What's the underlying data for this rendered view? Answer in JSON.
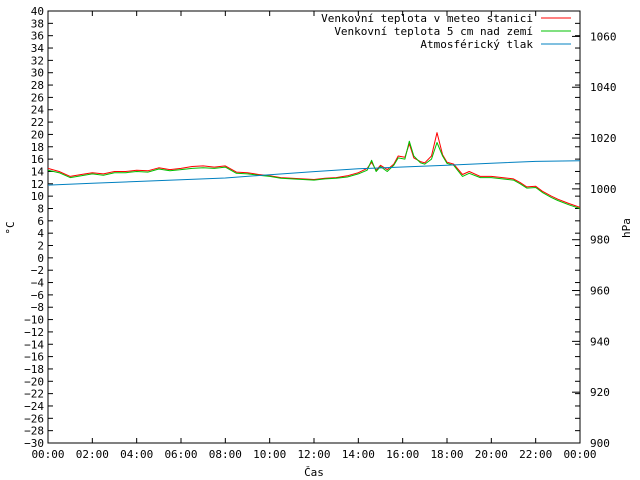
{
  "chart_data": {
    "type": "line",
    "xlabel": "Čas",
    "ylabel": "°C",
    "y2label": "hPa",
    "x_ticks": [
      "00:00",
      "02:00",
      "04:00",
      "06:00",
      "08:00",
      "10:00",
      "12:00",
      "14:00",
      "16:00",
      "18:00",
      "20:00",
      "22:00",
      "00:00"
    ],
    "x_range_hours": [
      0,
      24
    ],
    "ylim": [
      -30,
      40
    ],
    "y_step": 2,
    "y2lim": [
      900,
      1070
    ],
    "y2_ticks": [
      900,
      920,
      940,
      960,
      980,
      1000,
      1020,
      1040,
      1060
    ],
    "grid": false,
    "legend_position": "top-right",
    "series": [
      {
        "name": "Venkovní teplota v meteo stanici",
        "color": "#ff0000",
        "axis": "left",
        "points": [
          [
            0,
            14.5
          ],
          [
            0.5,
            14.0
          ],
          [
            1,
            13.2
          ],
          [
            1.5,
            13.5
          ],
          [
            2,
            13.8
          ],
          [
            2.5,
            13.6
          ],
          [
            3,
            14.0
          ],
          [
            3.5,
            14.0
          ],
          [
            4,
            14.2
          ],
          [
            4.5,
            14.1
          ],
          [
            5,
            14.6
          ],
          [
            5.5,
            14.3
          ],
          [
            6,
            14.5
          ],
          [
            6.5,
            14.8
          ],
          [
            7,
            14.9
          ],
          [
            7.5,
            14.7
          ],
          [
            8,
            14.9
          ],
          [
            8.5,
            13.9
          ],
          [
            9,
            13.8
          ],
          [
            9.5,
            13.5
          ],
          [
            10,
            13.3
          ],
          [
            10.5,
            13.0
          ],
          [
            11,
            12.9
          ],
          [
            11.5,
            12.8
          ],
          [
            12,
            12.7
          ],
          [
            12.5,
            12.9
          ],
          [
            13,
            13.0
          ],
          [
            13.5,
            13.3
          ],
          [
            14,
            13.8
          ],
          [
            14.4,
            14.5
          ],
          [
            14.6,
            15.5
          ],
          [
            14.8,
            14.2
          ],
          [
            15,
            15.0
          ],
          [
            15.3,
            14.3
          ],
          [
            15.6,
            15.2
          ],
          [
            15.8,
            16.5
          ],
          [
            16.1,
            16.3
          ],
          [
            16.3,
            18.5
          ],
          [
            16.5,
            16.2
          ],
          [
            16.8,
            15.6
          ],
          [
            17,
            15.4
          ],
          [
            17.3,
            16.5
          ],
          [
            17.55,
            20.3
          ],
          [
            17.8,
            16.7
          ],
          [
            18,
            15.5
          ],
          [
            18.3,
            15.2
          ],
          [
            18.7,
            13.5
          ],
          [
            19,
            14.0
          ],
          [
            19.5,
            13.2
          ],
          [
            20,
            13.2
          ],
          [
            20.5,
            13.0
          ],
          [
            21,
            12.8
          ],
          [
            21.3,
            12.2
          ],
          [
            21.6,
            11.5
          ],
          [
            22,
            11.6
          ],
          [
            22.3,
            10.8
          ],
          [
            22.7,
            10.0
          ],
          [
            23,
            9.5
          ],
          [
            23.5,
            8.8
          ],
          [
            24,
            8.2
          ]
        ]
      },
      {
        "name": "Venkovní teplota 5 cm nad zemí",
        "color": "#00c000",
        "axis": "left",
        "points": [
          [
            0,
            14.2
          ],
          [
            0.5,
            13.8
          ],
          [
            1,
            13.0
          ],
          [
            1.5,
            13.3
          ],
          [
            2,
            13.6
          ],
          [
            2.5,
            13.4
          ],
          [
            3,
            13.8
          ],
          [
            3.5,
            13.8
          ],
          [
            4,
            14.0
          ],
          [
            4.5,
            13.9
          ],
          [
            5,
            14.4
          ],
          [
            5.5,
            14.1
          ],
          [
            6,
            14.3
          ],
          [
            6.5,
            14.5
          ],
          [
            7,
            14.6
          ],
          [
            7.5,
            14.5
          ],
          [
            8,
            14.7
          ],
          [
            8.5,
            13.7
          ],
          [
            9,
            13.6
          ],
          [
            9.5,
            13.4
          ],
          [
            10,
            13.2
          ],
          [
            10.5,
            12.9
          ],
          [
            11,
            12.8
          ],
          [
            11.5,
            12.7
          ],
          [
            12,
            12.6
          ],
          [
            12.5,
            12.8
          ],
          [
            13,
            12.9
          ],
          [
            13.5,
            13.1
          ],
          [
            14,
            13.6
          ],
          [
            14.4,
            14.2
          ],
          [
            14.6,
            15.8
          ],
          [
            14.8,
            14.0
          ],
          [
            15,
            14.8
          ],
          [
            15.3,
            14.0
          ],
          [
            15.6,
            15.0
          ],
          [
            15.8,
            16.2
          ],
          [
            16.1,
            16.0
          ],
          [
            16.3,
            18.9
          ],
          [
            16.5,
            16.5
          ],
          [
            16.8,
            15.4
          ],
          [
            17,
            15.2
          ],
          [
            17.3,
            16.0
          ],
          [
            17.55,
            18.7
          ],
          [
            17.8,
            16.5
          ],
          [
            18,
            15.3
          ],
          [
            18.3,
            15.0
          ],
          [
            18.7,
            13.2
          ],
          [
            19,
            13.7
          ],
          [
            19.5,
            13.0
          ],
          [
            20,
            13.0
          ],
          [
            20.5,
            12.8
          ],
          [
            21,
            12.6
          ],
          [
            21.3,
            12.0
          ],
          [
            21.6,
            11.3
          ],
          [
            22,
            11.4
          ],
          [
            22.3,
            10.6
          ],
          [
            22.7,
            9.8
          ],
          [
            23,
            9.3
          ],
          [
            23.5,
            8.6
          ],
          [
            24,
            8.0
          ]
        ]
      },
      {
        "name": "Atmosférický tlak",
        "color": "#0080c0",
        "axis": "right",
        "points": [
          [
            0,
            1001.5
          ],
          [
            2,
            1002.2
          ],
          [
            4,
            1002.9
          ],
          [
            6,
            1003.6
          ],
          [
            8,
            1004.3
          ],
          [
            10,
            1005.6
          ],
          [
            12,
            1006.8
          ],
          [
            14,
            1007.9
          ],
          [
            16,
            1008.6
          ],
          [
            18,
            1009.3
          ],
          [
            20,
            1010.1
          ],
          [
            22,
            1010.8
          ],
          [
            24,
            1011.1
          ]
        ]
      }
    ]
  }
}
